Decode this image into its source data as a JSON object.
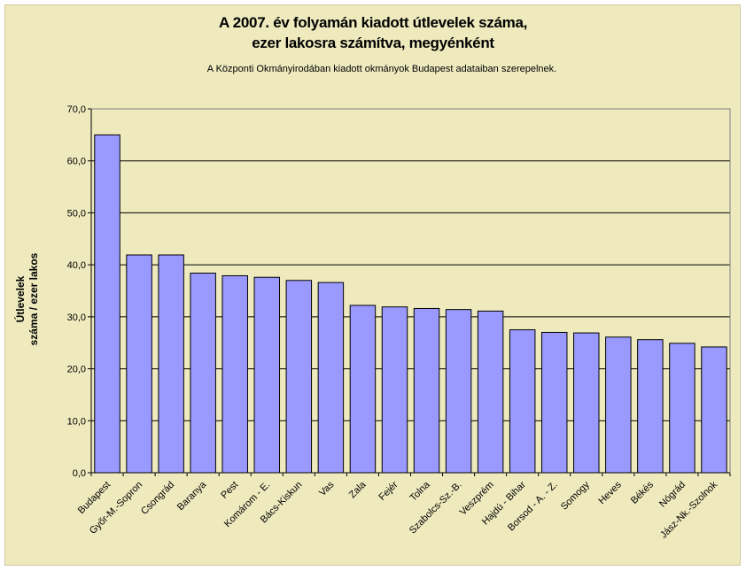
{
  "chart_data": {
    "type": "bar",
    "title": "A 2007. év folyamán kiadott útlevelek száma,\nezer lakosra számítva, megyénként",
    "subtitle": "A Központi Okmányirodában kiadott okmányok Budapest adataiban szerepelnek.",
    "xlabel": "",
    "ylabel": "Útlevelek\nszáma / ezer lakos",
    "ylim": [
      0,
      70
    ],
    "yticks": [
      "0,0",
      "10,0",
      "20,0",
      "30,0",
      "40,0",
      "50,0",
      "60,0",
      "70,0"
    ],
    "grid": true,
    "bar_color": "#9999ff",
    "background_color": "#eeeabe",
    "categories": [
      "Budapest",
      "Győr-M.-Sopron",
      "Csongrád",
      "Baranya",
      "Pest",
      "Komárom - E.",
      "Bács-Kiskun",
      "Vas",
      "Zala",
      "Fejér",
      "Tolna",
      "Szabolcs-Sz.-B.",
      "Veszprém",
      "Hajdú - Bihar",
      "Borsod - A. - Z.",
      "Somogy",
      "Heves",
      "Békés",
      "Nógrád",
      "Jász-Nk.-Szolnok"
    ],
    "values": [
      65.0,
      41.9,
      41.9,
      38.4,
      37.9,
      37.6,
      37.0,
      36.6,
      32.2,
      31.9,
      31.6,
      31.4,
      31.1,
      27.5,
      27.0,
      26.9,
      26.1,
      25.6,
      24.9,
      24.2
    ]
  }
}
